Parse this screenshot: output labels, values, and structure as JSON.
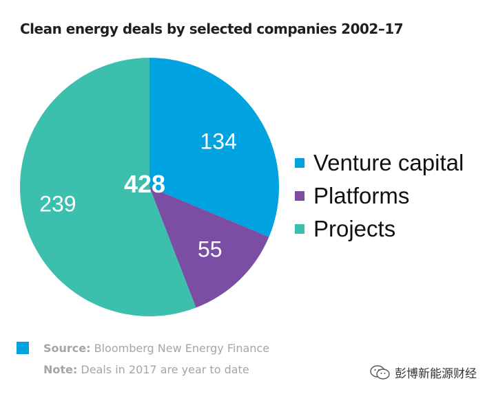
{
  "chart_data": {
    "type": "pie",
    "title": "Clean energy deals by selected companies 2002–17",
    "total_label": "428",
    "slices": [
      {
        "name": "Venture capital",
        "value": 134,
        "color": "#00a2df"
      },
      {
        "name": "Platforms",
        "value": 55,
        "color": "#7b4ea3"
      },
      {
        "name": "Projects",
        "value": 239,
        "color": "#3cbfad"
      }
    ],
    "start_angle_deg": 0,
    "direction": "clockwise"
  },
  "footer": {
    "source_key": "Source:",
    "source_text": "Bloomberg New Energy Finance",
    "note_key": "Note:",
    "note_text": "Deals in 2017 are year to date"
  },
  "watermark": {
    "text": "彭博新能源财经",
    "icon": "wechat-icon"
  },
  "colors": {
    "source_marker": "#00a2df",
    "label_text": "#ffffff"
  }
}
